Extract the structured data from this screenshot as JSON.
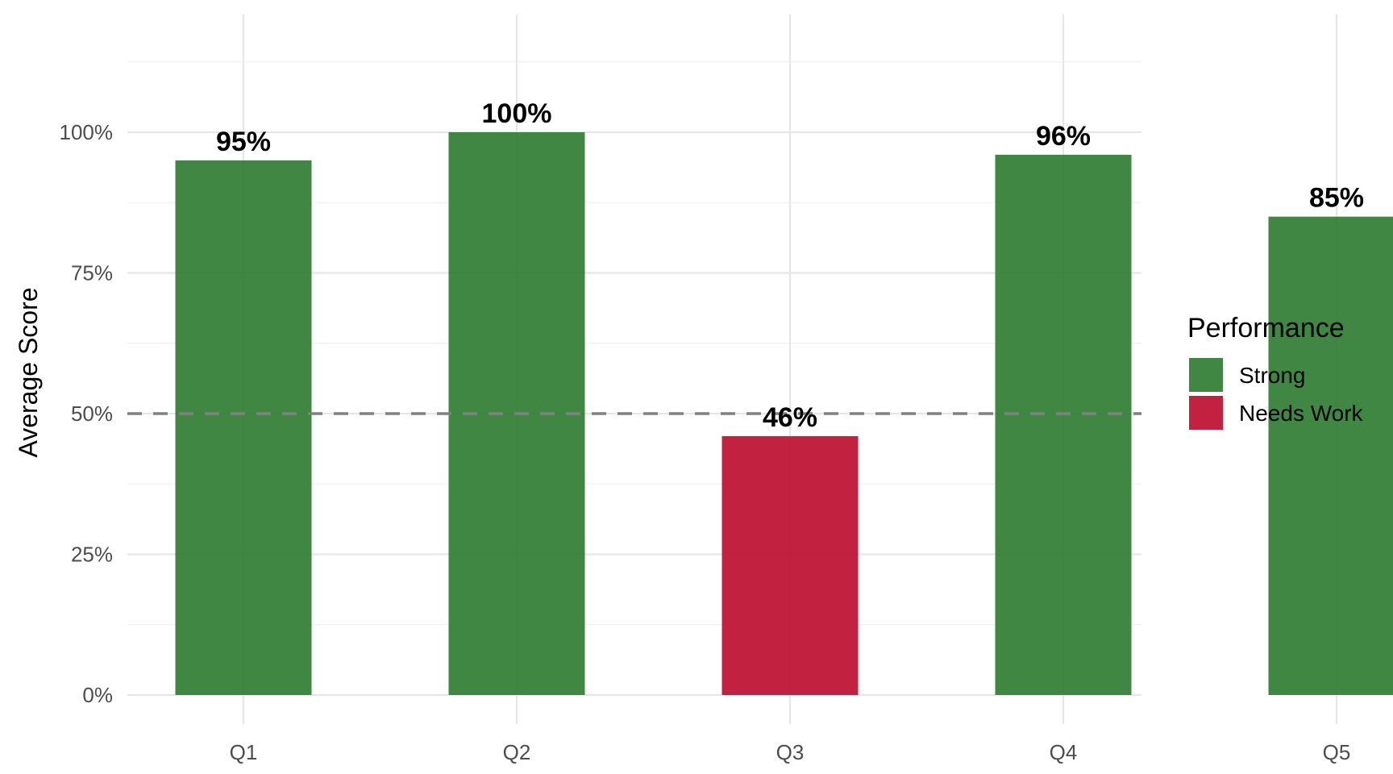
{
  "chart_data": {
    "type": "bar",
    "categories": [
      "Q1",
      "Q2",
      "Q3",
      "Q4",
      "Q5"
    ],
    "values": [
      95,
      100,
      46,
      96,
      85
    ],
    "value_labels": [
      "95%",
      "100%",
      "46%",
      "96%",
      "85%"
    ],
    "performance": [
      "Strong",
      "Strong",
      "Needs Work",
      "Strong",
      "Strong"
    ],
    "ylabel": "Average Score",
    "xlabel": "",
    "ylim": [
      0,
      112
    ],
    "yticks": [
      0,
      25,
      50,
      75,
      100
    ],
    "ytick_labels": [
      "0%",
      "25%",
      "50%",
      "75%",
      "100%"
    ],
    "reference_line": {
      "value": 50,
      "style": "dashed",
      "color": "#808080"
    },
    "legend": {
      "title": "Performance",
      "placement": "right",
      "entries": [
        {
          "label": "Strong",
          "color": "#2f7d32"
        },
        {
          "label": "Needs Work",
          "color": "#bd0f2f"
        }
      ]
    },
    "colors": {
      "Strong": "#2f7d32",
      "Needs Work": "#bd0f2f"
    },
    "grid": true
  }
}
